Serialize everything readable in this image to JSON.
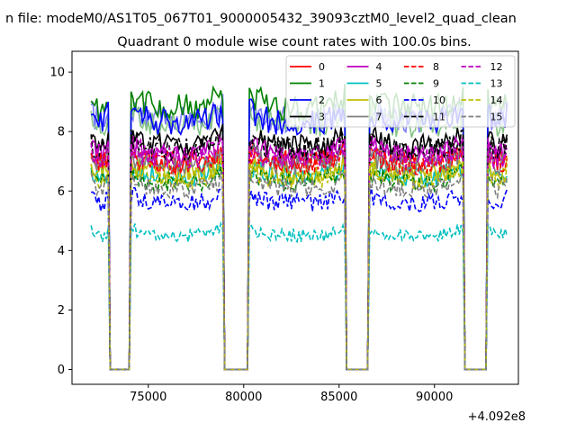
{
  "chart_data": {
    "type": "line",
    "suptitle": "n file: modeM0/AS1T05_067T01_9000005432_39093cztM0_level2_quad_clean",
    "title": "Quadrant 0 module wise count rates with 100.0s bins.",
    "xlabel": "",
    "ylabel": "",
    "x_offset_label": "+4.092e8",
    "xlim": [
      71000,
      94400
    ],
    "ylim": [
      -0.5,
      10.7
    ],
    "x_ticks": [
      75000,
      80000,
      85000,
      90000
    ],
    "x_tick_labels": [
      "75000",
      "80000",
      "85000",
      "90000"
    ],
    "y_ticks": [
      0,
      2,
      4,
      6,
      8,
      10
    ],
    "y_tick_labels": [
      "0",
      "2",
      "4",
      "6",
      "8",
      "10"
    ],
    "grid": false,
    "legend_position": "top-right",
    "legend_columns": 4,
    "segments": [
      [
        72000,
        72900
      ],
      [
        74100,
        78900
      ],
      [
        80300,
        85300
      ],
      [
        86600,
        91500
      ],
      [
        92800,
        93800
      ]
    ],
    "series": [
      {
        "name": "0",
        "level": 7.0,
        "color": "#ff0000",
        "dash": "solid"
      },
      {
        "name": "1",
        "level": 8.8,
        "color": "#008000",
        "dash": "solid"
      },
      {
        "name": "2",
        "level": 8.3,
        "color": "#0000ff",
        "dash": "solid"
      },
      {
        "name": "3",
        "level": 7.5,
        "color": "#000000",
        "dash": "solid"
      },
      {
        "name": "4",
        "level": 7.2,
        "color": "#bf00bf",
        "dash": "solid"
      },
      {
        "name": "5",
        "level": 6.5,
        "color": "#00bfbf",
        "dash": "solid"
      },
      {
        "name": "6",
        "level": 6.6,
        "color": "#bfbf00",
        "dash": "solid"
      },
      {
        "name": "7",
        "level": 6.9,
        "color": "#808080",
        "dash": "solid"
      },
      {
        "name": "8",
        "level": 6.9,
        "color": "#ff0000",
        "dash": "dashed"
      },
      {
        "name": "9",
        "level": 6.3,
        "color": "#008000",
        "dash": "dashed"
      },
      {
        "name": "10",
        "level": 5.6,
        "color": "#0000ff",
        "dash": "dashed"
      },
      {
        "name": "11",
        "level": 7.4,
        "color": "#000000",
        "dash": "dashed"
      },
      {
        "name": "12",
        "level": 7.1,
        "color": "#bf00bf",
        "dash": "dashed"
      },
      {
        "name": "13",
        "level": 4.5,
        "color": "#00bfbf",
        "dash": "dashed"
      },
      {
        "name": "14",
        "level": 6.4,
        "color": "#bfbf00",
        "dash": "dashed"
      },
      {
        "name": "15",
        "level": 6.1,
        "color": "#808080",
        "dash": "dashed"
      }
    ],
    "overlay_series": [
      {
        "color": "#7b7bf5",
        "dash": "solid",
        "level": 8.4
      },
      {
        "color": "#85c585",
        "dash": "solid",
        "level": 8.2
      }
    ]
  }
}
